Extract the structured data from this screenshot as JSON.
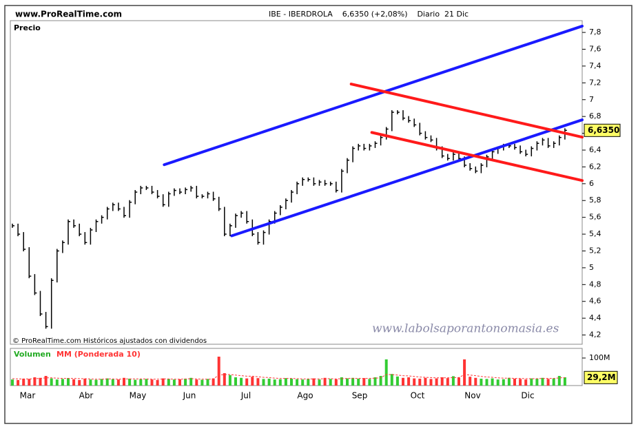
{
  "chart_data": {
    "type": "price",
    "site": "www.ProRealTime.com",
    "title": "IBE - IBERDROLA    6,6350 (+2,08%)    Diario  21 Dic",
    "panel_label": "Precio",
    "copyright": "© ProRealTime.com Históricos ajustados con dividendos",
    "watermark": "www.labolsaporantonomasia.es",
    "months": [
      "Mar",
      "Abr",
      "May",
      "Jun",
      "Jul",
      "Ago",
      "Sep",
      "Oct",
      "Nov",
      "Dic"
    ],
    "color": "#000000",
    "values": [
      5.5,
      5.4,
      5.22,
      4.9,
      4.7,
      4.45,
      4.3,
      4.85,
      5.2,
      5.3,
      5.55,
      5.5,
      5.4,
      5.3,
      5.45,
      5.55,
      5.6,
      5.7,
      5.75,
      5.7,
      5.62,
      5.78,
      5.9,
      5.95,
      5.95,
      5.9,
      5.85,
      5.75,
      5.88,
      5.92,
      5.9,
      5.93,
      5.95,
      5.85,
      5.85,
      5.88,
      5.82,
      5.7,
      5.4,
      5.5,
      5.62,
      5.65,
      5.55,
      5.4,
      5.3,
      5.42,
      5.55,
      5.65,
      5.72,
      5.8,
      5.9,
      6.0,
      6.05,
      6.05,
      6.0,
      6.02,
      6.0,
      6.0,
      5.92,
      6.15,
      6.28,
      6.42,
      6.45,
      6.42,
      6.45,
      6.48,
      6.55,
      6.65,
      6.85,
      6.85,
      6.78,
      6.75,
      6.7,
      6.6,
      6.55,
      6.52,
      6.42,
      6.33,
      6.3,
      6.35,
      6.3,
      6.22,
      6.18,
      6.15,
      6.22,
      6.32,
      6.38,
      6.42,
      6.45,
      6.45,
      6.43,
      6.38,
      6.35,
      6.42,
      6.48,
      6.52,
      6.45,
      6.48,
      6.55,
      6.635
    ],
    "last": {
      "value": 6.635,
      "label": "6,6350"
    },
    "ylim": [
      4.09,
      7.94
    ],
    "yticks": [
      {
        "value": 4.2,
        "label": "4,2"
      },
      {
        "value": 4.4,
        "label": "4,4"
      },
      {
        "value": 4.6,
        "label": "4,6"
      },
      {
        "value": 4.8,
        "label": "4,8"
      },
      5,
      {
        "value": 5.2,
        "label": "5,2"
      },
      {
        "value": 5.4,
        "label": "5,4"
      },
      {
        "value": 5.6,
        "label": "5,6"
      },
      {
        "value": 5.8,
        "label": "5,8"
      },
      6,
      {
        "value": 6.2,
        "label": "6,2"
      },
      {
        "value": 6.4,
        "label": "6,4"
      },
      {
        "value": 6.6,
        "label": "6,6"
      },
      {
        "value": 6.8,
        "label": "6,8"
      },
      7,
      {
        "value": 7.2,
        "label": "7,2"
      },
      {
        "value": 7.4,
        "label": "7,4"
      },
      {
        "value": 7.6,
        "label": "7,6"
      },
      {
        "value": 7.8,
        "label": "7,8"
      }
    ],
    "trendlines": [
      {
        "color": "#1a1aff",
        "from": [
          27.2,
          6.226
        ],
        "to": [
          102.1,
          7.875
        ]
      },
      {
        "color": "#1a1aff",
        "from": [
          39.3,
          5.38
        ],
        "to": [
          102.1,
          6.76
        ]
      },
      {
        "color": "#ff1a1a",
        "from": [
          60.7,
          7.186
        ],
        "to": [
          102.1,
          6.554
        ]
      },
      {
        "color": "#ff1a1a",
        "from": [
          64.4,
          6.61
        ],
        "to": [
          102.1,
          6.038
        ]
      }
    ],
    "volume": {
      "name": "Volumen",
      "ma_name": "MM (Ponderada 10)",
      "up_color": "#33cc33",
      "down_color": "#ff3333",
      "ma_color": "#ff3333",
      "values": [
        22,
        20,
        25,
        24,
        30,
        28,
        35,
        26,
        22,
        24,
        27,
        23,
        20,
        25,
        22,
        21,
        24,
        26,
        23,
        22,
        28,
        25,
        21,
        23,
        24,
        22,
        20,
        26,
        24,
        22,
        23,
        25,
        28,
        22,
        21,
        24,
        26,
        105,
        45,
        38,
        30,
        28,
        26,
        32,
        27,
        24,
        25,
        22,
        23,
        27,
        25,
        23,
        22,
        24,
        26,
        22,
        28,
        24,
        23,
        30,
        26,
        28,
        25,
        27,
        24,
        30,
        35,
        95,
        42,
        33,
        28,
        30,
        26,
        25,
        28,
        24,
        26,
        30,
        27,
        34,
        29,
        95,
        32,
        28,
        25,
        24,
        26,
        22,
        23,
        28,
        25,
        24,
        22,
        26,
        25,
        28,
        24,
        26,
        35,
        30
      ],
      "ma": [
        25,
        24,
        24,
        24,
        25,
        26,
        28,
        28,
        27,
        26,
        26,
        26,
        25,
        25,
        24,
        23,
        23,
        24,
        24,
        23,
        24,
        24,
        24,
        24,
        24,
        23,
        23,
        24,
        24,
        23,
        23,
        24,
        25,
        24,
        23,
        23,
        24,
        38,
        40,
        40,
        38,
        36,
        34,
        34,
        32,
        30,
        29,
        27,
        26,
        26,
        26,
        25,
        24,
        24,
        24,
        24,
        25,
        25,
        24,
        25,
        26,
        26,
        26,
        26,
        26,
        27,
        28,
        40,
        40,
        38,
        36,
        35,
        33,
        31,
        30,
        29,
        28,
        28,
        28,
        29,
        29,
        40,
        38,
        36,
        33,
        31,
        30,
        28,
        27,
        27,
        26,
        26,
        25,
        25,
        25,
        26,
        26,
        26,
        28,
        29.2
      ],
      "last": {
        "value": 29.2,
        "label": "29,2M"
      },
      "ylim": [
        0,
        135
      ],
      "yticks": [
        {
          "value": 100,
          "label": "100M"
        }
      ]
    }
  }
}
